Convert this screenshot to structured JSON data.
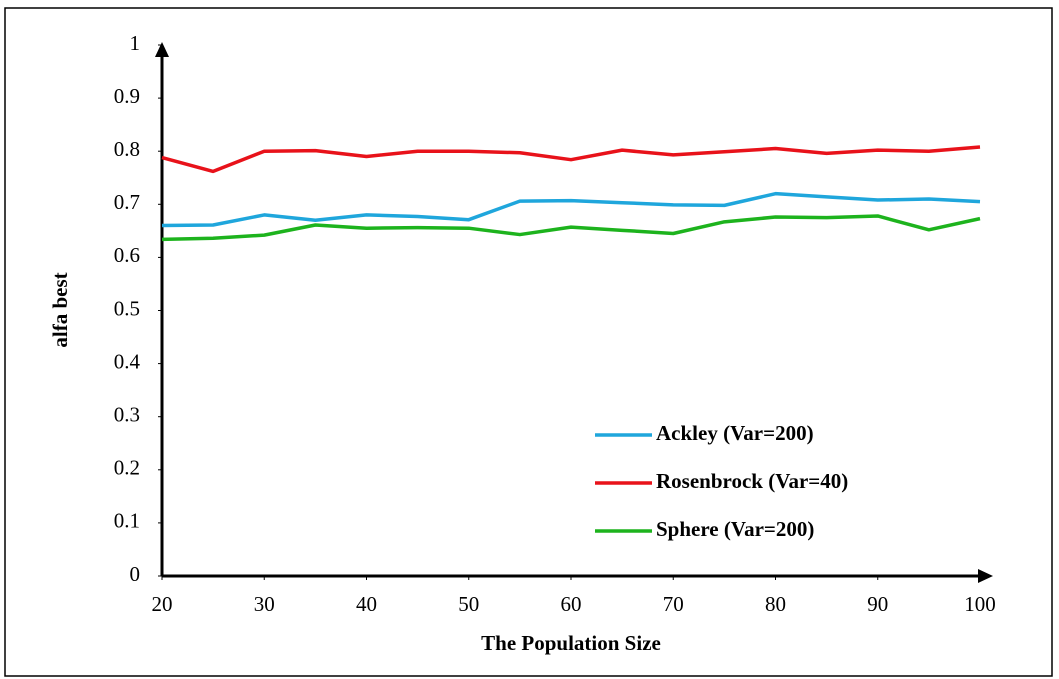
{
  "chart_data": {
    "type": "line",
    "x_label": "The Population Size",
    "y_label": "alfa best",
    "x": [
      20,
      25,
      30,
      35,
      40,
      45,
      50,
      55,
      60,
      65,
      70,
      75,
      80,
      85,
      90,
      95,
      100
    ],
    "series": [
      {
        "name": "Ackley (Var=200)",
        "color": "#1fa6dc",
        "values": [
          0.66,
          0.661,
          0.68,
          0.67,
          0.68,
          0.677,
          0.671,
          0.706,
          0.707,
          0.703,
          0.699,
          0.698,
          0.72,
          0.714,
          0.708,
          0.71,
          0.705
        ]
      },
      {
        "name": "Rosenbrock (Var=40)",
        "color": "#e8121a",
        "values": [
          0.788,
          0.762,
          0.8,
          0.801,
          0.79,
          0.8,
          0.8,
          0.797,
          0.784,
          0.802,
          0.793,
          0.799,
          0.805,
          0.796,
          0.802,
          0.8,
          0.808
        ]
      },
      {
        "name": "Sphere (Var=200)",
        "color": "#1db31d",
        "values": [
          0.634,
          0.636,
          0.642,
          0.661,
          0.655,
          0.656,
          0.655,
          0.643,
          0.657,
          0.651,
          0.645,
          0.667,
          0.676,
          0.675,
          0.678,
          0.652,
          0.673
        ]
      }
    ],
    "xlim": [
      20,
      100
    ],
    "xticks": [
      20,
      30,
      40,
      50,
      60,
      70,
      80,
      90,
      100
    ],
    "ylim": [
      0,
      1
    ],
    "yticks": [
      0,
      0.1,
      0.2,
      0.3,
      0.4,
      0.5,
      0.6,
      0.7,
      0.8,
      0.9,
      1
    ],
    "legend": "lower-right"
  }
}
